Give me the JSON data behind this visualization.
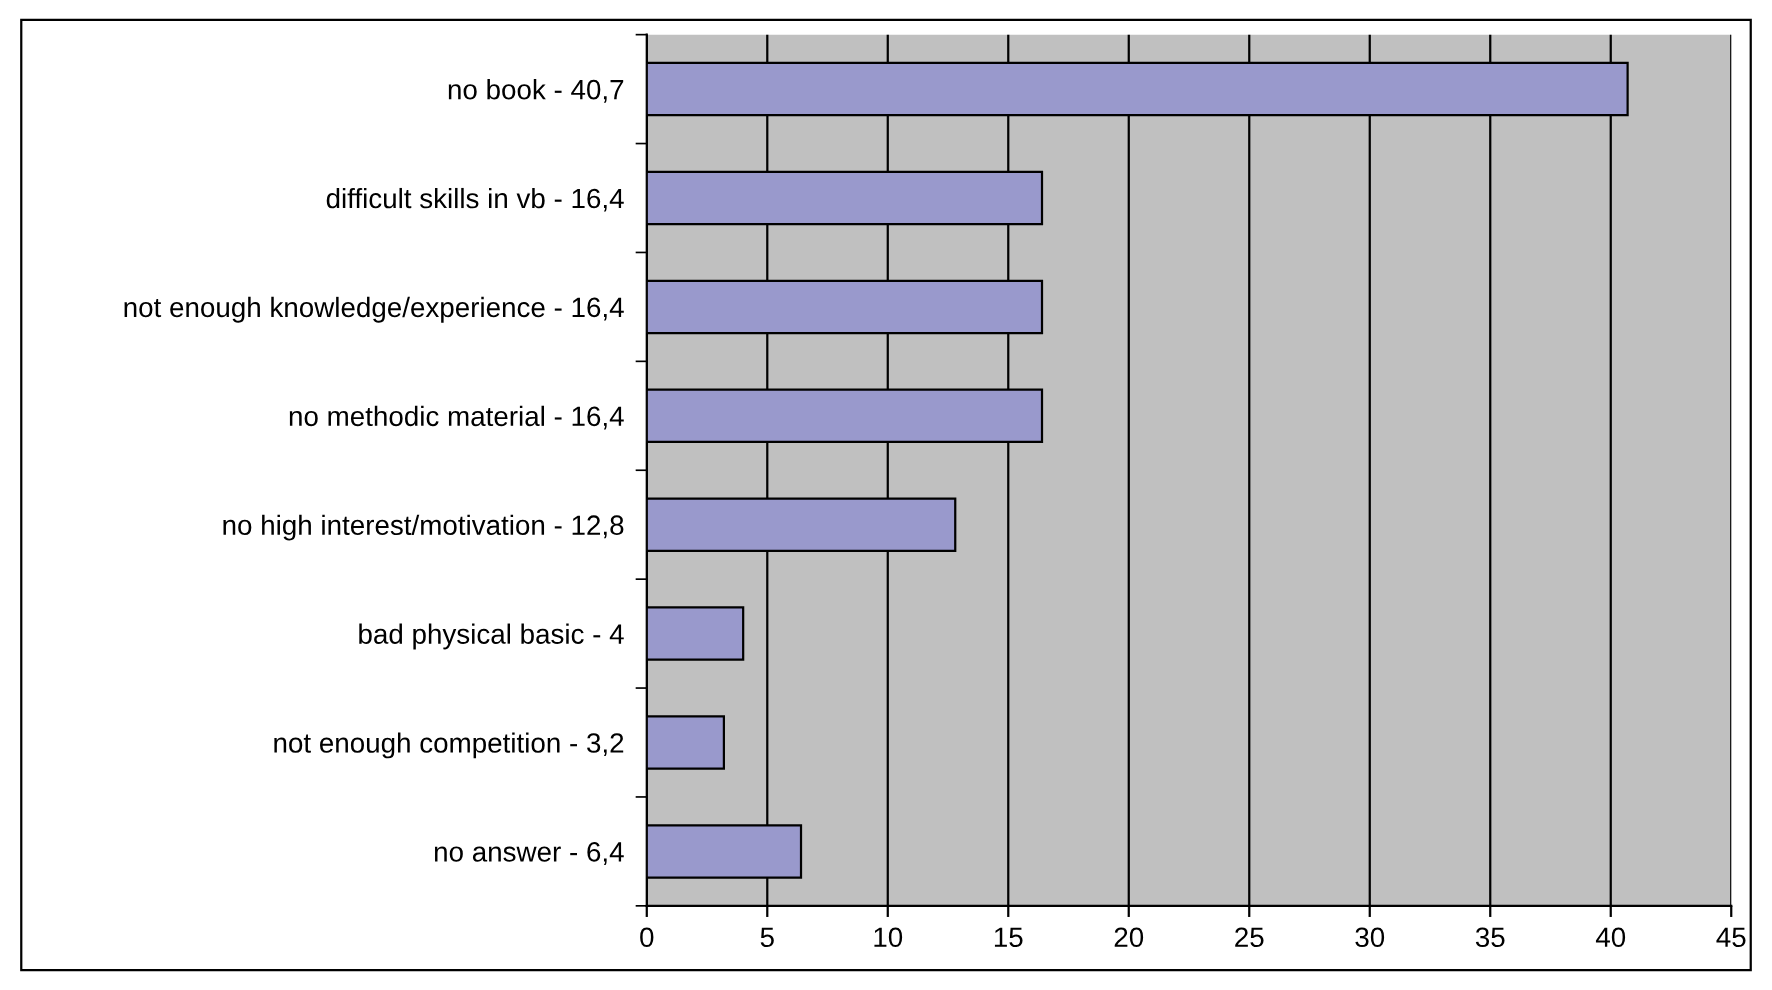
{
  "chart_data": {
    "type": "bar",
    "orientation": "horizontal",
    "categories": [
      "no book - 40,7",
      "difficult skills in vb - 16,4",
      "not enough knowledge/experience - 16,4",
      "no methodic material - 16,4",
      "no high interest/motivation - 12,8",
      "bad physical basic - 4",
      "not enough competition - 3,2",
      "no answer - 6,4"
    ],
    "values": [
      40.7,
      16.4,
      16.4,
      16.4,
      12.8,
      4,
      3.2,
      6.4
    ],
    "color": "#9999cc",
    "xlim": [
      0,
      45
    ],
    "xticks": [
      0,
      5,
      10,
      15,
      20,
      25,
      30,
      35,
      40,
      45
    ],
    "grid": "x",
    "legend": false
  }
}
